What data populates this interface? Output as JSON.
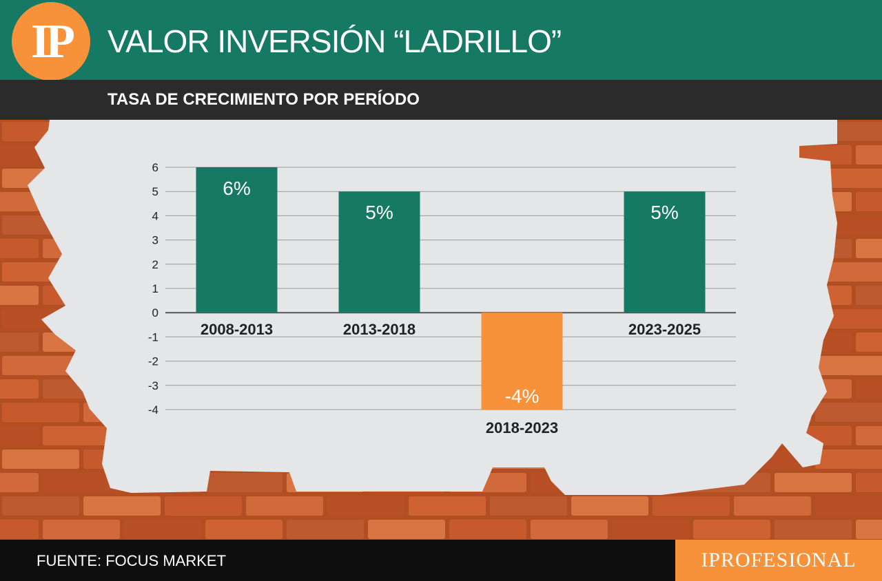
{
  "header": {
    "logo_text": "IP",
    "title": "VALOR INVERSIÓN “LADRILLO”",
    "subtitle": "TASA DE CRECIMIENTO POR PERÍODO"
  },
  "footer": {
    "source": "FUENTE: FOCUS MARKET",
    "brand": "IPROFESIONAL"
  },
  "colors": {
    "header": "#157964",
    "positive_bar": "#157964",
    "negative_bar": "#f7923a",
    "accent": "#f7923a",
    "background_panel": "#e5e6e8",
    "brick": "#c65a2c"
  },
  "chart_data": {
    "type": "bar",
    "title": "TASA DE CRECIMIENTO POR PERÍODO",
    "categories": [
      "2008-2013",
      "2013-2018",
      "2018-2023",
      "2023-2025"
    ],
    "values": [
      6,
      5,
      -4,
      5
    ],
    "data_labels": [
      "6%",
      "5%",
      "-4%",
      "5%"
    ],
    "yticks": [
      "6",
      "5",
      "4",
      "3",
      "2",
      "1",
      "0",
      "-1",
      "-2",
      "-3",
      "-4"
    ],
    "ylim": [
      -4,
      6
    ],
    "grid": true,
    "legend": "none"
  }
}
